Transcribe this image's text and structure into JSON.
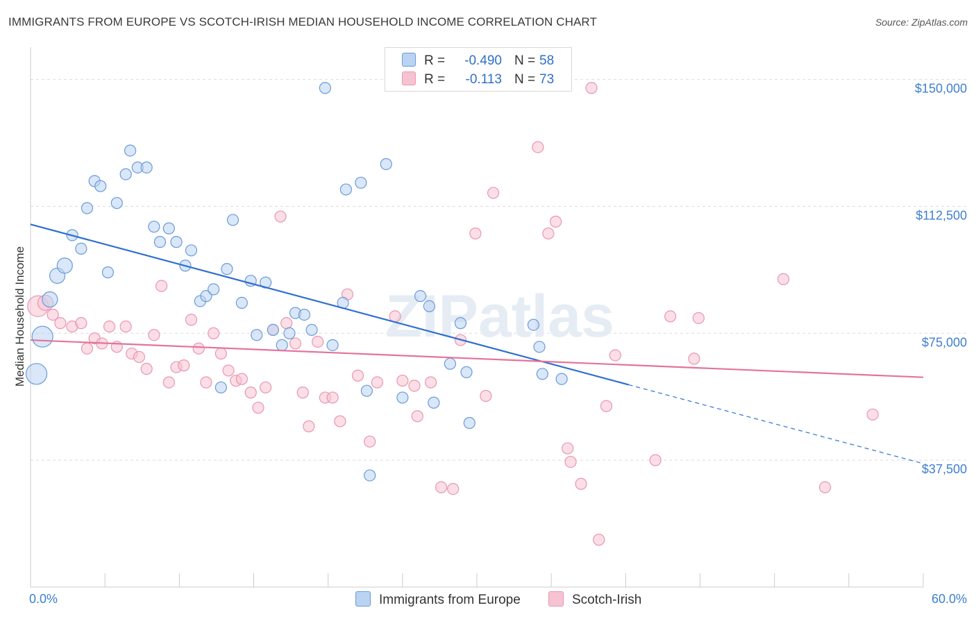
{
  "title": "IMMIGRANTS FROM EUROPE VS SCOTCH-IRISH MEDIAN HOUSEHOLD INCOME CORRELATION CHART",
  "source": "Source: ZipAtlas.com",
  "watermark": "ZIPatlas",
  "colors": {
    "blue_fill": "#b9d3f3",
    "blue_stroke": "#6a9ad8",
    "blue_line": "#2f6fcf",
    "pink_fill": "#f7c3d2",
    "pink_stroke": "#e896af",
    "pink_line": "#e4739b",
    "grid": "#dcdcdc",
    "tick_label": "#3d7fd0"
  },
  "legend": {
    "rows": [
      {
        "r_label": "R =",
        "r_value": "-0.490",
        "n_label": "N =",
        "n_value": "58"
      },
      {
        "r_label": "R =",
        "r_value": "-0.113",
        "n_label": "N =",
        "n_value": "73"
      }
    ]
  },
  "bottom_legend": {
    "series1": "Immigrants from Europe",
    "series2": "Scotch-Irish"
  },
  "chart_data": {
    "type": "scatter",
    "title": "IMMIGRANTS FROM EUROPE VS SCOTCH-IRISH MEDIAN HOUSEHOLD INCOME CORRELATION CHART",
    "xlabel": "",
    "ylabel": "Median Household Income",
    "xlim": [
      0,
      60
    ],
    "ylim": [
      0,
      157500
    ],
    "x_tick_labels": [
      "0.0%",
      "60.0%"
    ],
    "y_ticks": [
      {
        "value": 37500,
        "label": "$37,500"
      },
      {
        "value": 75000,
        "label": "$75,000"
      },
      {
        "value": 112500,
        "label": "$112,500"
      },
      {
        "value": 150000,
        "label": "$150,000"
      }
    ],
    "series": [
      {
        "name": "Immigrants from Europe",
        "color": "#6a9ad8",
        "R": -0.49,
        "N": 58,
        "trend": {
          "x0": 0,
          "y0": 107200,
          "x1": 40.2,
          "y1": 59800,
          "dash_x1": 60,
          "dash_y1": 36500
        },
        "points": [
          [
            0.4,
            63000,
            "lg"
          ],
          [
            0.8,
            74000,
            "lg"
          ],
          [
            1.3,
            85000,
            "m"
          ],
          [
            1.8,
            92000,
            "m"
          ],
          [
            2.3,
            95000,
            "m"
          ],
          [
            2.8,
            104000,
            "s"
          ],
          [
            3.4,
            100000,
            "s"
          ],
          [
            3.8,
            112000,
            "s"
          ],
          [
            4.3,
            120000,
            "s"
          ],
          [
            4.7,
            118500,
            "s"
          ],
          [
            5.2,
            93000,
            "s"
          ],
          [
            5.8,
            113500,
            "s"
          ],
          [
            6.4,
            122000,
            "s"
          ],
          [
            6.7,
            129000,
            "s"
          ],
          [
            7.2,
            124000,
            "s"
          ],
          [
            7.8,
            124000,
            "s"
          ],
          [
            8.3,
            106500,
            "s"
          ],
          [
            8.7,
            102000,
            "s"
          ],
          [
            9.3,
            106000,
            "s"
          ],
          [
            9.8,
            102000,
            "s"
          ],
          [
            10.4,
            95000,
            "s"
          ],
          [
            10.8,
            99500,
            "s"
          ],
          [
            11.4,
            84500,
            "s"
          ],
          [
            11.8,
            86000,
            "s"
          ],
          [
            12.3,
            88000,
            "s"
          ],
          [
            12.8,
            59000,
            "s"
          ],
          [
            13.2,
            94000,
            "s"
          ],
          [
            13.6,
            108500,
            "s"
          ],
          [
            14.2,
            84000,
            "s"
          ],
          [
            14.8,
            90500,
            "s"
          ],
          [
            15.2,
            74500,
            "s"
          ],
          [
            15.8,
            90000,
            "s"
          ],
          [
            16.3,
            76000,
            "s"
          ],
          [
            16.9,
            71500,
            "s"
          ],
          [
            17.4,
            75000,
            "s"
          ],
          [
            17.8,
            81000,
            "s"
          ],
          [
            18.4,
            80500,
            "s"
          ],
          [
            18.9,
            76000,
            "s"
          ],
          [
            19.8,
            147500,
            "s"
          ],
          [
            20.3,
            71500,
            "s"
          ],
          [
            21.0,
            84000,
            "s"
          ],
          [
            21.2,
            117500,
            "s"
          ],
          [
            22.2,
            119500,
            "s"
          ],
          [
            22.6,
            58000,
            "s"
          ],
          [
            22.8,
            33000,
            "s"
          ],
          [
            23.9,
            125000,
            "s"
          ],
          [
            25.0,
            56000,
            "s"
          ],
          [
            26.2,
            86000,
            "s"
          ],
          [
            26.8,
            83000,
            "s"
          ],
          [
            27.1,
            54500,
            "s"
          ],
          [
            28.2,
            66000,
            "s"
          ],
          [
            28.9,
            78000,
            "s"
          ],
          [
            29.3,
            63500,
            "s"
          ],
          [
            29.5,
            48500,
            "s"
          ],
          [
            34.2,
            71000,
            "s"
          ],
          [
            34.4,
            63000,
            "s"
          ],
          [
            35.7,
            61500,
            "s"
          ],
          [
            33.8,
            77500,
            "s"
          ]
        ]
      },
      {
        "name": "Scotch-Irish",
        "color": "#e896af",
        "R": -0.113,
        "N": 73,
        "trend": {
          "x0": 0,
          "y0": 73000,
          "x1": 60,
          "y1": 62000
        },
        "points": [
          [
            0.5,
            83000,
            "lg"
          ],
          [
            1.0,
            84000,
            "m"
          ],
          [
            1.5,
            80500,
            "s"
          ],
          [
            2.0,
            78000,
            "s"
          ],
          [
            2.8,
            77000,
            "s"
          ],
          [
            3.4,
            78000,
            "s"
          ],
          [
            3.8,
            70500,
            "s"
          ],
          [
            4.3,
            73500,
            "s"
          ],
          [
            4.8,
            72000,
            "s"
          ],
          [
            5.3,
            77000,
            "s"
          ],
          [
            5.8,
            71000,
            "s"
          ],
          [
            6.4,
            77000,
            "s"
          ],
          [
            6.8,
            69000,
            "s"
          ],
          [
            7.3,
            68000,
            "s"
          ],
          [
            7.8,
            64500,
            "s"
          ],
          [
            8.3,
            74500,
            "s"
          ],
          [
            8.8,
            89000,
            "s"
          ],
          [
            9.3,
            60500,
            "s"
          ],
          [
            9.8,
            65000,
            "s"
          ],
          [
            10.3,
            65500,
            "s"
          ],
          [
            10.8,
            79000,
            "s"
          ],
          [
            11.3,
            70500,
            "s"
          ],
          [
            11.8,
            60500,
            "s"
          ],
          [
            12.3,
            75000,
            "s"
          ],
          [
            12.8,
            69000,
            "s"
          ],
          [
            13.3,
            64000,
            "s"
          ],
          [
            13.8,
            61000,
            "s"
          ],
          [
            14.2,
            61500,
            "s"
          ],
          [
            14.8,
            57500,
            "s"
          ],
          [
            15.3,
            53000,
            "s"
          ],
          [
            15.8,
            59000,
            "s"
          ],
          [
            16.3,
            76000,
            "s"
          ],
          [
            16.8,
            109500,
            "s"
          ],
          [
            17.2,
            78000,
            "s"
          ],
          [
            17.8,
            72000,
            "s"
          ],
          [
            18.3,
            57500,
            "s"
          ],
          [
            18.7,
            47500,
            "s"
          ],
          [
            19.3,
            72500,
            "s"
          ],
          [
            19.8,
            56000,
            "s"
          ],
          [
            20.3,
            56000,
            "s"
          ],
          [
            20.8,
            49000,
            "s"
          ],
          [
            21.3,
            86500,
            "s"
          ],
          [
            22.0,
            62500,
            "s"
          ],
          [
            22.8,
            43000,
            "s"
          ],
          [
            23.3,
            60500,
            "s"
          ],
          [
            24.5,
            80000,
            "s"
          ],
          [
            25.0,
            61000,
            "s"
          ],
          [
            25.8,
            59500,
            "s"
          ],
          [
            26.0,
            50500,
            "s"
          ],
          [
            26.9,
            60500,
            "s"
          ],
          [
            27.6,
            29500,
            "s"
          ],
          [
            28.4,
            29000,
            "s"
          ],
          [
            28.9,
            73000,
            "s"
          ],
          [
            29.9,
            104500,
            "s"
          ],
          [
            30.6,
            56500,
            "s"
          ],
          [
            31.1,
            116500,
            "s"
          ],
          [
            34.1,
            130000,
            "s"
          ],
          [
            34.8,
            104500,
            "s"
          ],
          [
            35.3,
            108000,
            "s"
          ],
          [
            36.1,
            41000,
            "s"
          ],
          [
            36.3,
            37000,
            "s"
          ],
          [
            37.7,
            147500,
            "s"
          ],
          [
            38.2,
            14000,
            "s"
          ],
          [
            38.7,
            53500,
            "s"
          ],
          [
            39.3,
            68500,
            "s"
          ],
          [
            42.0,
            37500,
            "s"
          ],
          [
            43.0,
            80000,
            "s"
          ],
          [
            44.6,
            67500,
            "s"
          ],
          [
            44.9,
            79500,
            "s"
          ],
          [
            50.6,
            91000,
            "s"
          ],
          [
            53.4,
            29500,
            "s"
          ],
          [
            56.6,
            51000,
            "s"
          ],
          [
            37.0,
            30500,
            "s"
          ]
        ]
      }
    ]
  }
}
